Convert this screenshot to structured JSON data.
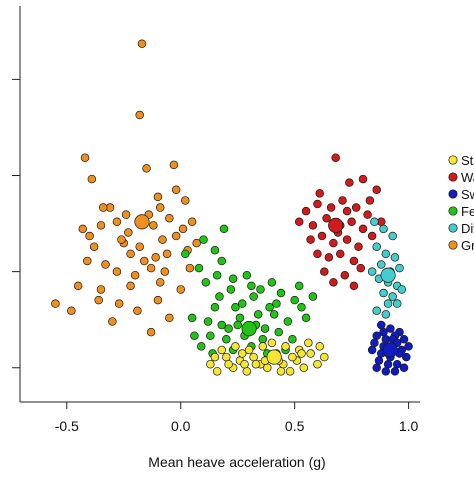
{
  "chart_data": {
    "type": "scatter",
    "title": "",
    "xlabel": "Mean heave acceleration (g)",
    "ylabel": "",
    "xlim": [
      -0.6,
      1.05
    ],
    "ylim": [
      0,
      1
    ],
    "x_ticks": [
      -0.5,
      0.0,
      0.5,
      1.0
    ],
    "x_tick_labels": [
      "-0.5",
      "0.0",
      "0.5",
      "1.0"
    ],
    "y_ticks": [
      0.04,
      0.31,
      0.58,
      0.85
    ],
    "grid": false,
    "legend_position": "right",
    "legend": [
      {
        "label": "Sta",
        "color": "#f6e632"
      },
      {
        "label": "Wa",
        "color": "#d11a1a"
      },
      {
        "label": "Sw",
        "color": "#0f1cc0"
      },
      {
        "label": "Fe",
        "color": "#21c414"
      },
      {
        "label": "Div",
        "color": "#45cccc"
      },
      {
        "label": "Gr",
        "color": "#ef8f1f"
      }
    ],
    "series": [
      {
        "label_index": 5,
        "color": "#ef8f1f",
        "centroid": [
          -0.17,
          0.45
        ],
        "points": [
          [
            -0.17,
            0.95
          ],
          [
            -0.18,
            0.75
          ],
          [
            -0.42,
            0.63
          ],
          [
            -0.39,
            0.57
          ],
          [
            -0.15,
            0.6
          ],
          [
            -0.03,
            0.61
          ],
          [
            -0.1,
            0.52
          ],
          [
            -0.02,
            0.54
          ],
          [
            0.02,
            0.51
          ],
          [
            -0.09,
            0.49
          ],
          [
            -0.31,
            0.49
          ],
          [
            -0.35,
            0.44
          ],
          [
            -0.28,
            0.45
          ],
          [
            -0.23,
            0.42
          ],
          [
            -0.14,
            0.47
          ],
          [
            -0.12,
            0.44
          ],
          [
            -0.05,
            0.46
          ],
          [
            0.01,
            0.43
          ],
          [
            -0.43,
            0.43
          ],
          [
            -0.4,
            0.41
          ],
          [
            -0.25,
            0.39
          ],
          [
            -0.22,
            0.36
          ],
          [
            -0.18,
            0.38
          ],
          [
            -0.08,
            0.4
          ],
          [
            0.03,
            0.37
          ],
          [
            0.07,
            0.39
          ],
          [
            -0.33,
            0.33
          ],
          [
            -0.28,
            0.31
          ],
          [
            -0.2,
            0.3
          ],
          [
            -0.13,
            0.32
          ],
          [
            -0.09,
            0.28
          ],
          [
            0.04,
            0.32
          ],
          [
            -0.55,
            0.22
          ],
          [
            -0.48,
            0.2
          ],
          [
            -0.35,
            0.26
          ],
          [
            -0.36,
            0.23
          ],
          [
            -0.22,
            0.27
          ],
          [
            -0.1,
            0.23
          ],
          [
            -0.05,
            0.18
          ],
          [
            -0.3,
            0.17
          ],
          [
            -0.13,
            0.14
          ],
          [
            -0.27,
            0.22
          ],
          [
            -0.16,
            0.34
          ],
          [
            -0.38,
            0.38
          ],
          [
            -0.24,
            0.47
          ],
          [
            -0.06,
            0.36
          ],
          [
            0.0,
            0.26
          ],
          [
            -0.45,
            0.27
          ],
          [
            -0.19,
            0.2
          ],
          [
            -0.26,
            0.4
          ],
          [
            -0.02,
            0.41
          ],
          [
            -0.34,
            0.49
          ],
          [
            -0.41,
            0.34
          ],
          [
            -0.11,
            0.35
          ],
          [
            0.05,
            0.45
          ],
          [
            -0.07,
            0.31
          ]
        ]
      },
      {
        "label_index": 3,
        "color": "#21c414",
        "centroid": [
          0.3,
          0.15
        ],
        "points": [
          [
            0.19,
            0.43
          ],
          [
            0.1,
            0.4
          ],
          [
            0.15,
            0.37
          ],
          [
            0.02,
            0.36
          ],
          [
            0.18,
            0.34
          ],
          [
            0.08,
            0.32
          ],
          [
            0.11,
            0.28
          ],
          [
            0.22,
            0.26
          ],
          [
            0.29,
            0.3
          ],
          [
            0.35,
            0.26
          ],
          [
            0.44,
            0.25
          ],
          [
            0.5,
            0.23
          ],
          [
            0.52,
            0.27
          ],
          [
            0.32,
            0.24
          ],
          [
            0.39,
            0.21
          ],
          [
            0.24,
            0.21
          ],
          [
            0.15,
            0.21
          ],
          [
            0.05,
            0.18
          ],
          [
            0.12,
            0.17
          ],
          [
            0.18,
            0.16
          ],
          [
            0.26,
            0.18
          ],
          [
            0.33,
            0.16
          ],
          [
            0.41,
            0.19
          ],
          [
            0.47,
            0.17
          ],
          [
            0.55,
            0.18
          ],
          [
            0.2,
            0.12
          ],
          [
            0.28,
            0.13
          ],
          [
            0.36,
            0.12
          ],
          [
            0.43,
            0.14
          ],
          [
            0.49,
            0.12
          ],
          [
            0.09,
            0.1
          ],
          [
            0.14,
            0.08
          ],
          [
            0.23,
            0.09
          ],
          [
            0.31,
            0.1
          ],
          [
            0.38,
            0.08
          ],
          [
            0.46,
            0.09
          ],
          [
            0.27,
            0.22
          ],
          [
            0.34,
            0.19
          ],
          [
            0.21,
            0.15
          ],
          [
            0.3,
            0.14
          ],
          [
            0.37,
            0.15
          ],
          [
            0.25,
            0.16
          ],
          [
            0.17,
            0.24
          ],
          [
            0.42,
            0.22
          ],
          [
            0.53,
            0.21
          ],
          [
            0.13,
            0.13
          ],
          [
            0.06,
            0.13
          ],
          [
            0.58,
            0.24
          ],
          [
            0.23,
            0.29
          ],
          [
            0.31,
            0.27
          ],
          [
            0.4,
            0.28
          ],
          [
            0.16,
            0.3
          ]
        ]
      },
      {
        "label_index": 0,
        "color": "#f6e632",
        "centroid": [
          0.41,
          0.07
        ],
        "points": [
          [
            0.13,
            0.05
          ],
          [
            0.16,
            0.03
          ],
          [
            0.2,
            0.07
          ],
          [
            0.23,
            0.04
          ],
          [
            0.26,
            0.06
          ],
          [
            0.29,
            0.03
          ],
          [
            0.32,
            0.07
          ],
          [
            0.35,
            0.05
          ],
          [
            0.38,
            0.04
          ],
          [
            0.42,
            0.08
          ],
          [
            0.45,
            0.05
          ],
          [
            0.48,
            0.03
          ],
          [
            0.51,
            0.06
          ],
          [
            0.54,
            0.04
          ],
          [
            0.57,
            0.08
          ],
          [
            0.6,
            0.05
          ],
          [
            0.63,
            0.07
          ],
          [
            0.18,
            0.09
          ],
          [
            0.24,
            0.1
          ],
          [
            0.3,
            0.09
          ],
          [
            0.36,
            0.1
          ],
          [
            0.4,
            0.11
          ],
          [
            0.46,
            0.1
          ],
          [
            0.52,
            0.09
          ],
          [
            0.56,
            0.11
          ],
          [
            0.27,
            0.08
          ],
          [
            0.33,
            0.05
          ],
          [
            0.43,
            0.06
          ],
          [
            0.49,
            0.07
          ],
          [
            0.21,
            0.05
          ],
          [
            0.15,
            0.07
          ],
          [
            0.61,
            0.1
          ],
          [
            0.37,
            0.06
          ],
          [
            0.44,
            0.03
          ],
          [
            0.28,
            0.05
          ],
          [
            0.53,
            0.08
          ]
        ]
      },
      {
        "label_index": 1,
        "color": "#d11a1a",
        "centroid": [
          0.68,
          0.44
        ],
        "points": [
          [
            0.68,
            0.63
          ],
          [
            0.74,
            0.56
          ],
          [
            0.8,
            0.57
          ],
          [
            0.86,
            0.54
          ],
          [
            0.55,
            0.48
          ],
          [
            0.6,
            0.5
          ],
          [
            0.66,
            0.49
          ],
          [
            0.71,
            0.51
          ],
          [
            0.77,
            0.49
          ],
          [
            0.82,
            0.47
          ],
          [
            0.52,
            0.45
          ],
          [
            0.58,
            0.44
          ],
          [
            0.64,
            0.46
          ],
          [
            0.7,
            0.44
          ],
          [
            0.75,
            0.45
          ],
          [
            0.8,
            0.43
          ],
          [
            0.57,
            0.4
          ],
          [
            0.62,
            0.41
          ],
          [
            0.67,
            0.39
          ],
          [
            0.73,
            0.4
          ],
          [
            0.78,
            0.38
          ],
          [
            0.84,
            0.41
          ],
          [
            0.6,
            0.36
          ],
          [
            0.65,
            0.35
          ],
          [
            0.7,
            0.36
          ],
          [
            0.76,
            0.34
          ],
          [
            0.63,
            0.31
          ],
          [
            0.72,
            0.3
          ],
          [
            0.79,
            0.32
          ],
          [
            0.67,
            0.28
          ],
          [
            0.76,
            0.27
          ],
          [
            0.88,
            0.45
          ],
          [
            0.69,
            0.42
          ],
          [
            0.61,
            0.53
          ],
          [
            0.83,
            0.51
          ],
          [
            0.73,
            0.48
          ]
        ]
      },
      {
        "label_index": 4,
        "color": "#45cccc",
        "centroid": [
          0.91,
          0.3
        ],
        "points": [
          [
            0.85,
            0.45
          ],
          [
            0.89,
            0.43
          ],
          [
            0.93,
            0.41
          ],
          [
            0.86,
            0.38
          ],
          [
            0.9,
            0.36
          ],
          [
            0.94,
            0.35
          ],
          [
            0.88,
            0.33
          ],
          [
            0.92,
            0.31
          ],
          [
            0.96,
            0.32
          ],
          [
            0.87,
            0.29
          ],
          [
            0.91,
            0.28
          ],
          [
            0.95,
            0.27
          ],
          [
            0.89,
            0.25
          ],
          [
            0.93,
            0.24
          ],
          [
            0.97,
            0.26
          ],
          [
            0.91,
            0.22
          ],
          [
            0.95,
            0.22
          ],
          [
            0.86,
            0.2
          ],
          [
            0.9,
            0.19
          ],
          [
            0.84,
            0.31
          ]
        ]
      },
      {
        "label_index": 2,
        "color": "#0f1cc0",
        "centroid": [
          0.92,
          0.09
        ],
        "points": [
          [
            0.88,
            0.16
          ],
          [
            0.92,
            0.15
          ],
          [
            0.96,
            0.14
          ],
          [
            0.86,
            0.13
          ],
          [
            0.9,
            0.12
          ],
          [
            0.94,
            0.13
          ],
          [
            0.98,
            0.12
          ],
          [
            0.85,
            0.11
          ],
          [
            0.89,
            0.1
          ],
          [
            0.93,
            0.1
          ],
          [
            0.97,
            0.09
          ],
          [
            1.0,
            0.1
          ],
          [
            0.84,
            0.09
          ],
          [
            0.88,
            0.08
          ],
          [
            0.92,
            0.07
          ],
          [
            0.96,
            0.08
          ],
          [
            0.99,
            0.07
          ],
          [
            0.87,
            0.06
          ],
          [
            0.91,
            0.05
          ],
          [
            0.95,
            0.05
          ],
          [
            0.9,
            0.03
          ],
          [
            0.94,
            0.03
          ],
          [
            0.86,
            0.04
          ],
          [
            0.98,
            0.04
          ],
          [
            0.93,
            0.12
          ],
          [
            0.89,
            0.14
          ],
          [
            0.95,
            0.11
          ],
          [
            0.91,
            0.08
          ]
        ]
      }
    ]
  }
}
